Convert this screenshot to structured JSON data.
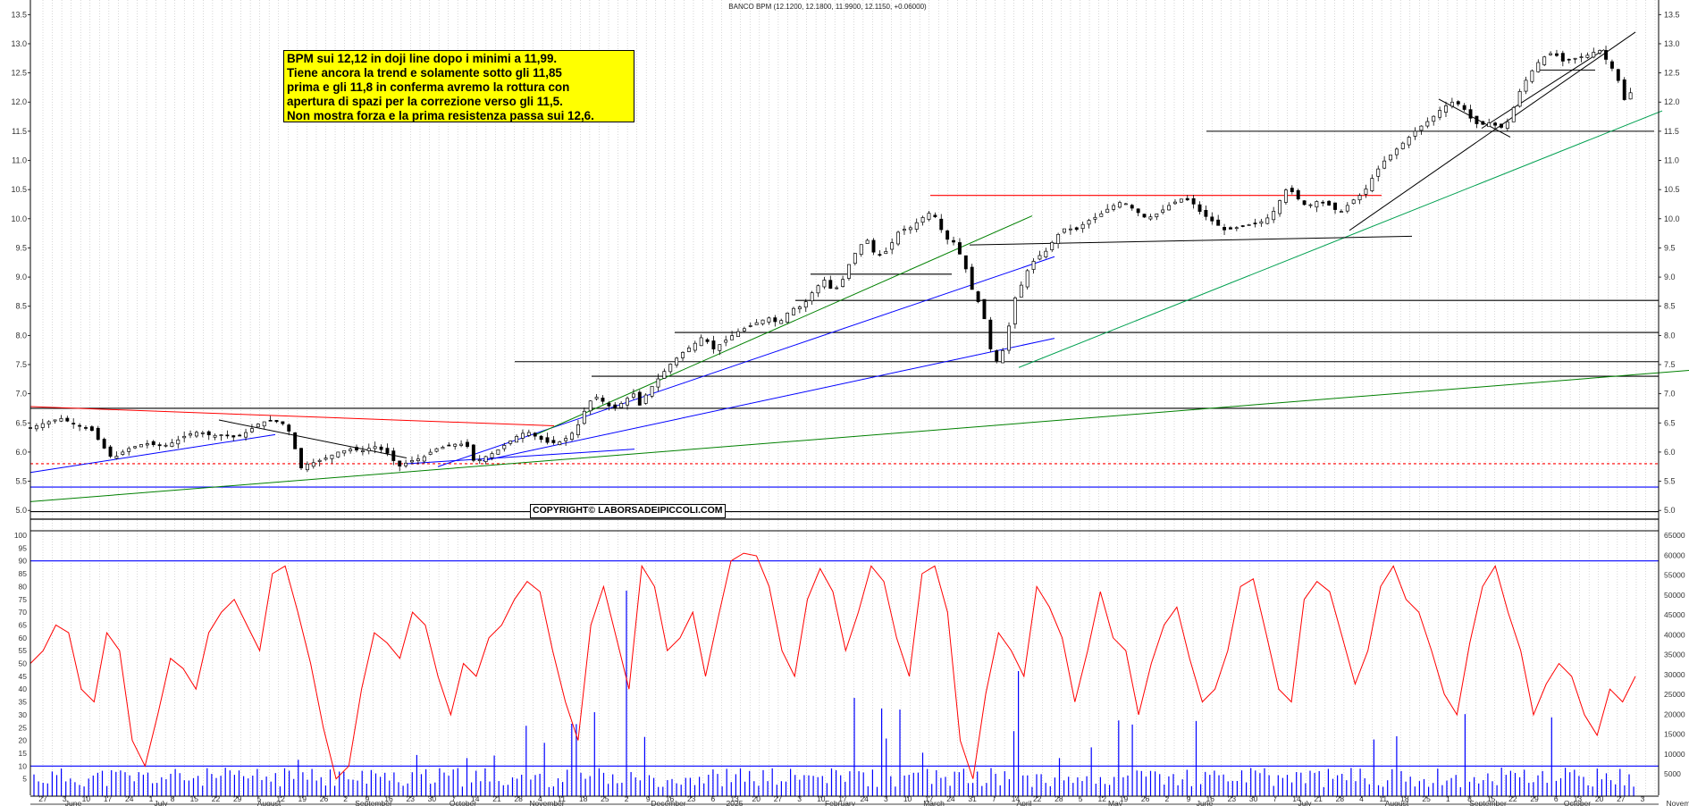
{
  "header": {
    "title": "BANCO BPM (12.1200, 12.1800, 11.9900, 12.1150, +0.06000)"
  },
  "annotation": {
    "lines": [
      "BPM sui 12,12 in doji line dopo i minimi a 11,99.",
      "Tiene ancora la trend e solamente sotto gli 11,85",
      "prima e gli 11,8 in conferma avremo la rottura con",
      "apertura di spazi per la correzione verso gli 11,5.",
      "Non mostra forza e la prima resistenza passa sui 12,6."
    ]
  },
  "copyright": "COPYRIGHT© LABORSADEIPICCOLI.COM",
  "chart_data": [
    {
      "type": "candlestick",
      "series_name": "BANCO BPM",
      "y_ticks": [
        "13.5",
        "13.0",
        "12.5",
        "12.0",
        "11.5",
        "11.0",
        "10.5",
        "10.0",
        "9.5",
        "9.0",
        "8.5",
        "8.0",
        "7.5",
        "7.0",
        "6.5",
        "6.0",
        "5.5",
        "5.0"
      ],
      "ylim": [
        4.85,
        13.75
      ],
      "last_bar": {
        "open": 12.12,
        "high": 12.18,
        "low": 11.99,
        "close": 12.115,
        "change": 0.06
      },
      "horizontal_levels": [
        {
          "value": 11.5,
          "color": "#000000"
        },
        {
          "value": 10.4,
          "color": "#ff0000"
        },
        {
          "value": 9.05,
          "color": "#000000"
        },
        {
          "value": 8.6,
          "color": "#000000"
        },
        {
          "value": 8.05,
          "color": "#000000"
        },
        {
          "value": 7.55,
          "color": "#000000"
        },
        {
          "value": 7.3,
          "color": "#000000"
        },
        {
          "value": 6.75,
          "color": "#000000"
        },
        {
          "value": 5.8,
          "color": "#ff0000"
        },
        {
          "value": 5.4,
          "color": "#0000ff"
        },
        {
          "value": 4.98,
          "color": "#000000"
        }
      ],
      "close_path": [
        [
          0,
          6.42
        ],
        [
          12,
          6.5
        ],
        [
          25,
          6.58
        ],
        [
          40,
          6.45
        ],
        [
          50,
          6.4
        ],
        [
          60,
          6.1
        ],
        [
          68,
          5.88
        ],
        [
          80,
          6.05
        ],
        [
          95,
          6.15
        ],
        [
          110,
          6.1
        ],
        [
          120,
          6.18
        ],
        [
          130,
          6.3
        ],
        [
          140,
          6.35
        ],
        [
          150,
          6.28
        ],
        [
          160,
          6.3
        ],
        [
          170,
          6.25
        ],
        [
          180,
          6.35
        ],
        [
          190,
          6.5
        ],
        [
          200,
          6.55
        ],
        [
          210,
          6.48
        ],
        [
          218,
          6.25
        ],
        [
          222,
          5.65
        ],
        [
          226,
          5.78
        ],
        [
          235,
          5.82
        ],
        [
          245,
          5.9
        ],
        [
          255,
          6.0
        ],
        [
          265,
          6.05
        ],
        [
          275,
          6.02
        ],
        [
          285,
          6.1
        ],
        [
          295,
          6.0
        ],
        [
          305,
          5.75
        ],
        [
          315,
          5.85
        ],
        [
          325,
          5.9
        ],
        [
          335,
          6.05
        ],
        [
          345,
          6.1
        ],
        [
          355,
          6.15
        ],
        [
          362,
          6.1
        ],
        [
          368,
          5.82
        ],
        [
          375,
          5.9
        ],
        [
          385,
          6.0
        ],
        [
          395,
          6.15
        ],
        [
          405,
          6.3
        ],
        [
          412,
          6.35
        ],
        [
          420,
          6.25
        ],
        [
          430,
          6.15
        ],
        [
          440,
          6.18
        ],
        [
          448,
          6.3
        ],
        [
          455,
          6.5
        ],
        [
          462,
          6.85
        ],
        [
          470,
          6.95
        ],
        [
          478,
          6.8
        ],
        [
          485,
          6.75
        ],
        [
          492,
          6.88
        ],
        [
          500,
          7.0
        ],
        [
          505,
          6.8
        ],
        [
          512,
          7.05
        ],
        [
          520,
          7.25
        ],
        [
          530,
          7.5
        ],
        [
          540,
          7.7
        ],
        [
          550,
          7.85
        ],
        [
          558,
          8.0
        ],
        [
          565,
          7.75
        ],
        [
          575,
          7.9
        ],
        [
          585,
          8.05
        ],
        [
          595,
          8.15
        ],
        [
          605,
          8.25
        ],
        [
          612,
          8.3
        ],
        [
          620,
          8.2
        ],
        [
          630,
          8.45
        ],
        [
          640,
          8.5
        ],
        [
          650,
          8.8
        ],
        [
          658,
          8.95
        ],
        [
          665,
          8.75
        ],
        [
          672,
          8.9
        ],
        [
          680,
          9.3
        ],
        [
          688,
          9.55
        ],
        [
          695,
          9.65
        ],
        [
          700,
          9.35
        ],
        [
          710,
          9.45
        ],
        [
          720,
          9.8
        ],
        [
          730,
          9.85
        ],
        [
          738,
          10.0
        ],
        [
          745,
          10.1
        ],
        [
          752,
          10.0
        ],
        [
          758,
          9.6
        ],
        [
          762,
          9.7
        ],
        [
          768,
          9.5
        ],
        [
          772,
          9.3
        ],
        [
          776,
          9.1
        ],
        [
          780,
          8.8
        ],
        [
          785,
          8.6
        ],
        [
          792,
          8.2
        ],
        [
          797,
          7.6
        ],
        [
          802,
          7.55
        ],
        [
          808,
          7.85
        ],
        [
          815,
          8.6
        ],
        [
          822,
          8.9
        ],
        [
          828,
          9.2
        ],
        [
          835,
          9.35
        ],
        [
          842,
          9.45
        ],
        [
          850,
          9.7
        ],
        [
          858,
          9.85
        ],
        [
          866,
          9.8
        ],
        [
          875,
          9.95
        ],
        [
          885,
          10.05
        ],
        [
          895,
          10.2
        ],
        [
          905,
          10.3
        ],
        [
          915,
          10.15
        ],
        [
          925,
          10.0
        ],
        [
          935,
          10.1
        ],
        [
          945,
          10.25
        ],
        [
          955,
          10.35
        ],
        [
          962,
          10.3
        ],
        [
          970,
          10.1
        ],
        [
          980,
          9.95
        ],
        [
          990,
          9.8
        ],
        [
          1000,
          9.85
        ],
        [
          1010,
          9.9
        ],
        [
          1020,
          9.95
        ],
        [
          1028,
          10.05
        ],
        [
          1035,
          10.3
        ],
        [
          1042,
          10.55
        ],
        [
          1050,
          10.35
        ],
        [
          1058,
          10.2
        ],
        [
          1065,
          10.3
        ],
        [
          1075,
          10.25
        ],
        [
          1085,
          10.1
        ],
        [
          1095,
          10.3
        ],
        [
          1105,
          10.45
        ],
        [
          1112,
          10.7
        ],
        [
          1120,
          10.95
        ],
        [
          1130,
          11.15
        ],
        [
          1140,
          11.35
        ],
        [
          1150,
          11.55
        ],
        [
          1160,
          11.7
        ],
        [
          1170,
          11.9
        ],
        [
          1178,
          12.0
        ],
        [
          1186,
          11.95
        ],
        [
          1192,
          11.75
        ],
        [
          1200,
          11.6
        ],
        [
          1210,
          11.65
        ],
        [
          1218,
          11.55
        ],
        [
          1226,
          11.7
        ],
        [
          1232,
          12.1
        ],
        [
          1240,
          12.4
        ],
        [
          1248,
          12.65
        ],
        [
          1256,
          12.8
        ],
        [
          1262,
          12.85
        ],
        [
          1270,
          12.7
        ],
        [
          1280,
          12.75
        ],
        [
          1290,
          12.8
        ],
        [
          1300,
          12.9
        ],
        [
          1305,
          12.75
        ],
        [
          1310,
          12.6
        ],
        [
          1315,
          12.45
        ],
        [
          1318,
          12.15
        ],
        [
          1322,
          12.0
        ],
        [
          1327,
          12.2
        ],
        [
          1330,
          12.12
        ]
      ]
    },
    {
      "type": "oscillator_volume",
      "y_ticks": [
        "100",
        "95",
        "90",
        "85",
        "80",
        "75",
        "70",
        "65",
        "60",
        "55",
        "50",
        "45",
        "40",
        "35",
        "30",
        "25",
        "20",
        "15",
        "10",
        "5"
      ],
      "volume_ticks": [
        "65000",
        "60000",
        "55000",
        "50000",
        "45000",
        "40000",
        "35000",
        "30000",
        "25000",
        "20000",
        "15000",
        "10000",
        "5000"
      ],
      "osc_levels": [
        90,
        10
      ],
      "oscillator": [
        50,
        55,
        65,
        62,
        40,
        35,
        62,
        55,
        20,
        10,
        30,
        52,
        48,
        40,
        62,
        70,
        75,
        65,
        55,
        85,
        88,
        70,
        50,
        25,
        5,
        10,
        40,
        62,
        58,
        52,
        70,
        65,
        45,
        30,
        50,
        45,
        60,
        65,
        75,
        82,
        78,
        55,
        35,
        20,
        65,
        80,
        60,
        40,
        88,
        80,
        55,
        60,
        70,
        45,
        68,
        90,
        93,
        92,
        80,
        55,
        45,
        75,
        87,
        78,
        55,
        70,
        88,
        82,
        60,
        45,
        85,
        88,
        70,
        20,
        5,
        38,
        62,
        55,
        45,
        80,
        72,
        60,
        35,
        55,
        78,
        60,
        55,
        30,
        50,
        65,
        72,
        52,
        35,
        40,
        55,
        80,
        83,
        62,
        40,
        35,
        75,
        82,
        78,
        60,
        42,
        55,
        80,
        88,
        75,
        70,
        55,
        38,
        30,
        58,
        80,
        88,
        70,
        55,
        30,
        42,
        50,
        45,
        30,
        22,
        40,
        35,
        45
      ]
    }
  ],
  "x_axis": {
    "day_ticks": [
      "27",
      "3",
      "10",
      "17",
      "24",
      "1",
      "8",
      "15",
      "22",
      "29",
      "5",
      "12",
      "19",
      "26",
      "2",
      "9",
      "16",
      "23",
      "30",
      "7",
      "14",
      "21",
      "28",
      "4",
      "11",
      "18",
      "25",
      "2",
      "9",
      "16",
      "23",
      "6",
      "13",
      "20",
      "27",
      "3",
      "10",
      "17",
      "24",
      "3",
      "10",
      "17",
      "24",
      "31",
      "7",
      "14",
      "22",
      "28",
      "5",
      "12",
      "19",
      "26",
      "2",
      "9",
      "16",
      "23",
      "30",
      "7",
      "14",
      "21",
      "28",
      "4",
      "11",
      "18",
      "25",
      "1",
      "8",
      "15",
      "22",
      "29",
      "6",
      "13",
      "20",
      "27",
      "3"
    ],
    "month_labels": [
      "June",
      "July",
      "August",
      "September",
      "October",
      "November",
      "December",
      "2025",
      "February",
      "March",
      "April",
      "May",
      "June",
      "July",
      "August",
      "September",
      "October",
      "Novem"
    ]
  }
}
